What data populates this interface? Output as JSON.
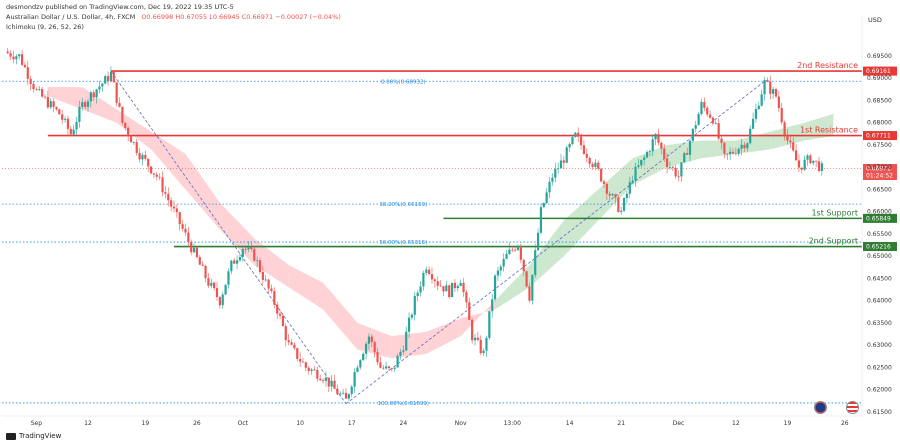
{
  "header": {
    "author": "desmondzv published on TradingView.com, Dec 19, 2022 19:35 UTC-5",
    "symbol": "Australian Dollar / U.S. Dollar, 4h, FXCM",
    "ohlc": "O0.66998 H0.67055 L0.66945 C0.66971 −0.00027 (−0.04%)",
    "indicator": "Ichimoku (9, 26, 52, 26)"
  },
  "footer": {
    "brand": "TradingView"
  },
  "colors": {
    "up": "#26a69a",
    "down": "#ef5350",
    "resistance": "#e53935",
    "support": "#2e7d32",
    "cloud_bull": "#c8e6c9",
    "cloud_bear": "#ffcdd2",
    "fib": "#1e88e5"
  },
  "chart_data": {
    "type": "candlestick",
    "currency": "USD",
    "ylim": [
      0.6145,
      0.6995
    ],
    "y_ticks": [
      "0.69500",
      "0.69000",
      "0.68500",
      "0.68000",
      "0.67500",
      "0.67000",
      "0.66500",
      "0.66000",
      "0.65500",
      "0.65000",
      "0.64500",
      "0.64000",
      "0.63500",
      "0.63000",
      "0.62500",
      "0.62000",
      "0.61500"
    ],
    "x_ticks": [
      {
        "label": "Sep",
        "i": 6
      },
      {
        "label": "12",
        "i": 15
      },
      {
        "label": "19",
        "i": 25
      },
      {
        "label": "26",
        "i": 34
      },
      {
        "label": "Oct",
        "i": 42
      },
      {
        "label": "10",
        "i": 52
      },
      {
        "label": "17",
        "i": 61
      },
      {
        "label": "24",
        "i": 70
      },
      {
        "label": "Nov",
        "i": 80
      },
      {
        "label": "13:00",
        "i": 89
      },
      {
        "label": "14",
        "i": 99
      },
      {
        "label": "21",
        "i": 108
      },
      {
        "label": "Dec",
        "i": 118
      },
      {
        "label": "12",
        "i": 128
      },
      {
        "label": "19",
        "i": 137
      },
      {
        "label": "26",
        "i": 147
      }
    ],
    "levels": [
      {
        "name": "2nd Resistance",
        "value": 0.69161,
        "label": "0.69161",
        "kind": "resistance"
      },
      {
        "name": "1st Resistance",
        "value": 0.67711,
        "label": "0.67711",
        "kind": "resistance"
      },
      {
        "name": "1st Support",
        "value": 0.65849,
        "label": "0.65849",
        "kind": "support"
      },
      {
        "name": "2nd Support",
        "value": 0.65216,
        "label": "0.65216",
        "kind": "support"
      }
    ],
    "fibs": [
      {
        "label": "0.00%(0.68932)",
        "value": 0.68932
      },
      {
        "label": "38.20%(0.66169)",
        "value": 0.66169
      },
      {
        "label": "50.00%(0.65316)",
        "value": 0.65316
      },
      {
        "label": "100.00%(0.61699)",
        "value": 0.61699
      }
    ],
    "last_price": {
      "value": 0.66971,
      "label": "0.66971",
      "countdown": "01:24:52"
    },
    "swing_points": [
      {
        "i": 19,
        "value": 0.6916
      },
      {
        "i": 60,
        "value": 0.6168
      },
      {
        "i": 133,
        "value": 0.6893
      }
    ],
    "price_path": [
      [
        0,
        0.696
      ],
      [
        3,
        0.695
      ],
      [
        6,
        0.687
      ],
      [
        10,
        0.682
      ],
      [
        12,
        0.6775
      ],
      [
        14,
        0.684
      ],
      [
        16,
        0.687
      ],
      [
        18,
        0.6895
      ],
      [
        19,
        0.691
      ],
      [
        21,
        0.68
      ],
      [
        24,
        0.673
      ],
      [
        27,
        0.668
      ],
      [
        30,
        0.66
      ],
      [
        33,
        0.652
      ],
      [
        36,
        0.644
      ],
      [
        38,
        0.64
      ],
      [
        40,
        0.648
      ],
      [
        42,
        0.652
      ],
      [
        44,
        0.65
      ],
      [
        46,
        0.644
      ],
      [
        48,
        0.638
      ],
      [
        50,
        0.63
      ],
      [
        53,
        0.625
      ],
      [
        56,
        0.623
      ],
      [
        58,
        0.62
      ],
      [
        60,
        0.6175
      ],
      [
        62,
        0.626
      ],
      [
        64,
        0.632
      ],
      [
        66,
        0.625
      ],
      [
        68,
        0.624
      ],
      [
        70,
        0.63
      ],
      [
        72,
        0.64
      ],
      [
        74,
        0.648
      ],
      [
        76,
        0.644
      ],
      [
        78,
        0.642
      ],
      [
        80,
        0.645
      ],
      [
        82,
        0.632
      ],
      [
        84,
        0.628
      ],
      [
        86,
        0.645
      ],
      [
        88,
        0.65
      ],
      [
        90,
        0.653
      ],
      [
        92,
        0.641
      ],
      [
        94,
        0.66
      ],
      [
        96,
        0.668
      ],
      [
        98,
        0.672
      ],
      [
        100,
        0.677
      ],
      [
        102,
        0.673
      ],
      [
        104,
        0.669
      ],
      [
        106,
        0.664
      ],
      [
        108,
        0.66
      ],
      [
        110,
        0.668
      ],
      [
        112,
        0.672
      ],
      [
        114,
        0.677
      ],
      [
        116,
        0.671
      ],
      [
        118,
        0.668
      ],
      [
        120,
        0.676
      ],
      [
        122,
        0.684
      ],
      [
        124,
        0.681
      ],
      [
        126,
        0.672
      ],
      [
        128,
        0.674
      ],
      [
        130,
        0.676
      ],
      [
        132,
        0.685
      ],
      [
        133,
        0.689
      ],
      [
        135,
        0.686
      ],
      [
        137,
        0.676
      ],
      [
        139,
        0.67
      ],
      [
        141,
        0.672
      ],
      [
        143,
        0.6697
      ]
    ],
    "cloud": [
      [
        8,
        0.688,
        0.686
      ],
      [
        14,
        0.688,
        0.683
      ],
      [
        20,
        0.683,
        0.68
      ],
      [
        26,
        0.678,
        0.674
      ],
      [
        32,
        0.673,
        0.665
      ],
      [
        38,
        0.662,
        0.656
      ],
      [
        44,
        0.654,
        0.648
      ],
      [
        50,
        0.648,
        0.643
      ],
      [
        56,
        0.644,
        0.638
      ],
      [
        62,
        0.635,
        0.629
      ],
      [
        68,
        0.632,
        0.627
      ],
      [
        74,
        0.633,
        0.628
      ],
      [
        80,
        0.636,
        0.632
      ],
      [
        86,
        0.638,
        0.64
      ],
      [
        92,
        0.643,
        0.648
      ],
      [
        98,
        0.65,
        0.658
      ],
      [
        104,
        0.658,
        0.665
      ],
      [
        110,
        0.666,
        0.672
      ],
      [
        116,
        0.67,
        0.675
      ],
      [
        122,
        0.672,
        0.676
      ],
      [
        128,
        0.673,
        0.676
      ],
      [
        134,
        0.674,
        0.678
      ],
      [
        140,
        0.676,
        0.68
      ],
      [
        145,
        0.677,
        0.682
      ]
    ]
  }
}
